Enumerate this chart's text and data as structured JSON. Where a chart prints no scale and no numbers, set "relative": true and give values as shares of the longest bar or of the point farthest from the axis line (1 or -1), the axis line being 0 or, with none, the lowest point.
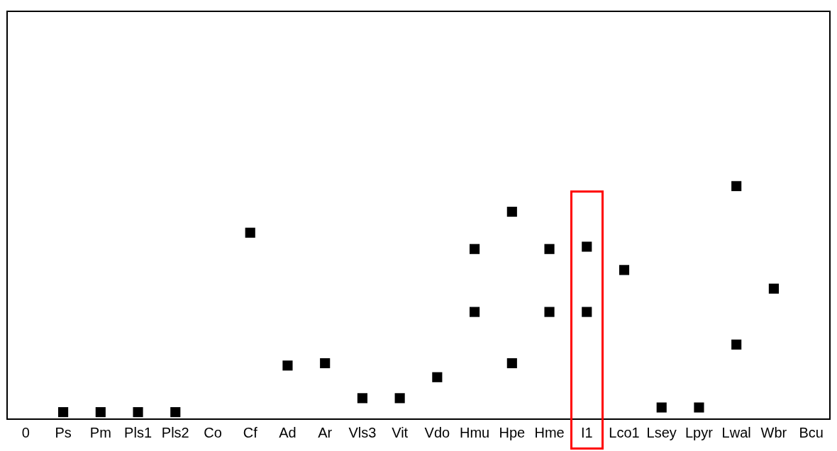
{
  "chart_data": {
    "type": "scatter",
    "relative": true,
    "categories": [
      "0",
      "Ps",
      "Pm",
      "Pls1",
      "Pls2",
      "Co",
      "Cf",
      "Ad",
      "Ar",
      "Vls3",
      "Vit",
      "Vdo",
      "Hmu",
      "Hpe",
      "Hme",
      "I1",
      "Lco1",
      "Lsey",
      "Lpyr",
      "Lwal",
      "Wbr",
      "Bcu"
    ],
    "series": [
      {
        "color": "#000000",
        "values": [
          null,
          0.03,
          0.03,
          0.03,
          0.03,
          null,
          0.8,
          0.23,
          0.24,
          0.09,
          0.09,
          0.18,
          0.73,
          0.89,
          0.73,
          0.74,
          0.64,
          0.05,
          0.05,
          1,
          0.56,
          null
        ]
      },
      {
        "color": "#000000",
        "values": [
          null,
          null,
          null,
          null,
          null,
          null,
          null,
          null,
          null,
          null,
          null,
          null,
          0.46,
          0.24,
          0.46,
          0.46,
          null,
          null,
          null,
          0.32,
          null,
          null
        ]
      }
    ],
    "marker": "square",
    "grid": false,
    "legend": false,
    "tick_labels": "x"
  }
}
